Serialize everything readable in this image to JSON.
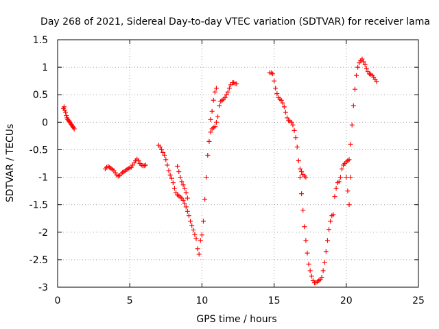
{
  "chart_data": {
    "type": "scatter",
    "title": "Day 268 of 2021, Sidereal Day-to-day VTEC variation (SDTVAR) for receiver lama",
    "xlabel": "GPS time / hours",
    "ylabel": "SDTVAR / TECUs",
    "xlim": [
      0,
      25
    ],
    "ylim": [
      -3,
      1.5
    ],
    "xticks": [
      0,
      5,
      10,
      15,
      20,
      25
    ],
    "xtick_labels": [
      "0",
      "5",
      "10",
      "15",
      "20",
      "25"
    ],
    "yticks": [
      1.5,
      1,
      0.5,
      0,
      -0.5,
      -1,
      -1.5,
      -2,
      -2.5,
      -3
    ],
    "ytick_labels": [
      "1.5",
      "1",
      "0.5",
      "0",
      "-0.5",
      "-1",
      "-1.5",
      "-2",
      "-2.5",
      "-3"
    ],
    "grid": true,
    "legend": "none",
    "marker": "plus",
    "color": "#ff0000",
    "series": [
      {
        "name": "SDTVAR",
        "segments": [
          {
            "x": [
              0.4,
              0.45,
              0.5,
              0.55,
              0.6,
              0.65,
              0.7,
              0.75,
              0.8,
              0.85,
              0.9,
              0.95,
              1.0,
              1.05,
              1.1,
              1.15
            ],
            "y": [
              0.25,
              0.28,
              0.22,
              0.18,
              0.12,
              0.08,
              0.05,
              0.03,
              0.02,
              0.0,
              -0.02,
              -0.04,
              -0.06,
              -0.08,
              -0.1,
              -0.12
            ]
          },
          {
            "x": [
              3.3,
              3.4,
              3.5,
              3.6,
              3.7,
              3.8,
              3.9,
              4.0,
              4.1,
              4.2,
              4.3,
              4.4,
              4.5,
              4.6,
              4.7,
              4.8,
              4.9,
              5.0,
              5.1,
              5.2,
              5.3,
              5.4,
              5.5,
              5.6,
              5.7,
              5.8,
              5.9,
              6.0,
              6.1
            ],
            "y": [
              -0.85,
              -0.82,
              -0.8,
              -0.82,
              -0.84,
              -0.86,
              -0.88,
              -0.92,
              -0.96,
              -0.98,
              -0.97,
              -0.94,
              -0.91,
              -0.9,
              -0.88,
              -0.86,
              -0.84,
              -0.83,
              -0.82,
              -0.78,
              -0.74,
              -0.7,
              -0.67,
              -0.7,
              -0.75,
              -0.78,
              -0.79,
              -0.79,
              -0.78
            ]
          },
          {
            "x": [
              7.0,
              7.1,
              7.2,
              7.3,
              7.4,
              7.5,
              7.6,
              7.7,
              7.8,
              7.9,
              8.0,
              8.1,
              8.2,
              8.3,
              8.4,
              8.5,
              8.6,
              8.7,
              8.8,
              8.9,
              9.0,
              9.1,
              9.2,
              9.3,
              9.4,
              9.5,
              9.6,
              9.7,
              9.8
            ],
            "y": [
              -0.42,
              -0.45,
              -0.5,
              -0.55,
              -0.6,
              -0.68,
              -0.78,
              -0.88,
              -0.96,
              -1.02,
              -1.1,
              -1.2,
              -1.28,
              -1.32,
              -1.34,
              -1.36,
              -1.38,
              -1.42,
              -1.48,
              -1.54,
              -1.62,
              -1.7,
              -1.8,
              -1.88,
              -1.96,
              -2.04,
              -2.12,
              -2.3,
              -2.4
            ]
          },
          {
            "x": [
              8.3,
              8.4,
              8.5,
              8.6,
              8.7,
              8.8,
              8.9,
              9.0
            ],
            "y": [
              -0.8,
              -0.9,
              -1.0,
              -1.08,
              -1.14,
              -1.2,
              -1.28,
              -1.38
            ]
          },
          {
            "x": [
              9.9,
              10.0,
              10.1,
              10.2,
              10.3,
              10.4,
              10.5,
              10.6,
              10.7,
              10.8,
              10.9,
              11.0,
              11.1,
              11.2,
              11.3,
              11.4,
              11.5,
              11.6,
              11.7,
              11.8,
              11.9,
              12.0,
              12.1,
              12.2,
              12.3,
              12.4
            ],
            "y": [
              -2.15,
              -2.05,
              -1.8,
              -1.4,
              -1.0,
              -0.6,
              -0.35,
              -0.18,
              -0.12,
              -0.1,
              -0.08,
              0.0,
              0.1,
              0.3,
              0.38,
              0.4,
              0.42,
              0.45,
              0.5,
              0.55,
              0.62,
              0.68,
              0.72,
              0.72,
              0.7,
              0.7
            ]
          },
          {
            "x": [
              10.6,
              10.7,
              10.8,
              10.9,
              11.0
            ],
            "y": [
              0.05,
              0.2,
              0.4,
              0.55,
              0.62
            ]
          },
          {
            "x": [
              14.7,
              14.8,
              14.9,
              15.0,
              15.1,
              15.2,
              15.3,
              15.4,
              15.5,
              15.6,
              15.7,
              15.8,
              15.9,
              16.0,
              16.1,
              16.2,
              16.3,
              16.4,
              16.5,
              16.6,
              16.7,
              16.8,
              16.9,
              17.0,
              17.1,
              17.2,
              17.3,
              17.4,
              17.5,
              17.6,
              17.7,
              17.8,
              17.9,
              18.0,
              18.1,
              18.2,
              18.3,
              18.4,
              18.5,
              18.6,
              18.7,
              18.8,
              18.9,
              19.0,
              19.1
            ],
            "y": [
              0.9,
              0.9,
              0.88,
              0.75,
              0.62,
              0.52,
              0.45,
              0.42,
              0.4,
              0.35,
              0.28,
              0.18,
              0.08,
              0.03,
              0.02,
              0.0,
              -0.05,
              -0.15,
              -0.28,
              -0.45,
              -0.7,
              -1.0,
              -1.3,
              -1.6,
              -1.9,
              -2.15,
              -2.38,
              -2.58,
              -2.7,
              -2.8,
              -2.88,
              -2.92,
              -2.92,
              -2.9,
              -2.88,
              -2.86,
              -2.82,
              -2.7,
              -2.55,
              -2.35,
              -2.15,
              -1.95,
              -1.8,
              -1.7,
              -1.68
            ]
          },
          {
            "x": [
              16.8,
              16.9,
              17.0,
              17.1,
              17.2
            ],
            "y": [
              -0.85,
              -0.9,
              -0.95,
              -0.98,
              -1.0
            ]
          },
          {
            "x": [
              19.2,
              19.3,
              19.4,
              19.5,
              19.6,
              19.7,
              19.8,
              19.9,
              20.0,
              20.1,
              20.2,
              20.3,
              20.4,
              20.5,
              20.6,
              20.7,
              20.8,
              20.9,
              21.0,
              21.1,
              21.2,
              21.3,
              21.4,
              21.5,
              21.6,
              21.7,
              21.8,
              21.9,
              22.0,
              22.1
            ],
            "y": [
              -1.35,
              -1.2,
              -1.1,
              -1.08,
              -1.0,
              -0.85,
              -0.78,
              -0.75,
              -0.72,
              -0.7,
              -0.68,
              -0.4,
              -0.05,
              0.3,
              0.6,
              0.85,
              1.0,
              1.08,
              1.12,
              1.15,
              1.1,
              1.05,
              0.98,
              0.92,
              0.88,
              0.87,
              0.85,
              0.82,
              0.78,
              0.74
            ]
          },
          {
            "x": [
              20.0,
              20.1,
              20.2,
              20.3
            ],
            "y": [
              -1.0,
              -1.25,
              -1.5,
              -1.0
            ]
          }
        ]
      }
    ]
  }
}
